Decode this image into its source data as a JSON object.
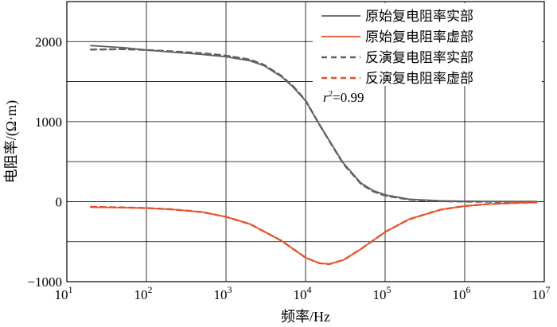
{
  "chart_data": {
    "type": "line",
    "x_scale": "log",
    "xlabel": "频率/Hz",
    "ylabel": "电阻率/(Ω·m)",
    "xlim": [
      10,
      10000000
    ],
    "ylim": [
      -1000,
      2500
    ],
    "grid": true,
    "legend_position": "top-right",
    "x_ticks": [
      {
        "value": 10,
        "base": "10",
        "exp": "1"
      },
      {
        "value": 100,
        "base": "10",
        "exp": "2"
      },
      {
        "value": 1000,
        "base": "10",
        "exp": "3"
      },
      {
        "value": 10000,
        "base": "10",
        "exp": "4"
      },
      {
        "value": 100000,
        "base": "10",
        "exp": "5"
      },
      {
        "value": 1000000,
        "base": "10",
        "exp": "6"
      },
      {
        "value": 10000000,
        "base": "10",
        "exp": "7"
      }
    ],
    "y_ticks": [
      {
        "value": 2000,
        "label": "2000"
      },
      {
        "value": 1000,
        "label": "1000"
      },
      {
        "value": 0,
        "label": "0"
      },
      {
        "value": -1000,
        "label": "−1000"
      }
    ],
    "y_gridlines": [
      -500,
      500,
      1500
    ],
    "annotation": {
      "r": "r",
      "sup": "2",
      "rest": "=0.99"
    },
    "series": [
      {
        "name": "原始复电阻率实部",
        "color": "#606060",
        "dash": "solid",
        "x": [
          20,
          50,
          100,
          200,
          500,
          1000,
          2000,
          3000,
          5000,
          7000,
          10000,
          15000,
          20000,
          30000,
          50000,
          70000,
          100000,
          200000,
          500000,
          1000000,
          2000000,
          5000000,
          8000000
        ],
        "y": [
          1950,
          1925,
          1895,
          1870,
          1840,
          1810,
          1760,
          1700,
          1560,
          1430,
          1260,
          960,
          760,
          480,
          230,
          140,
          85,
          30,
          10,
          5,
          3,
          2,
          2
        ]
      },
      {
        "name": "原始复电阻率虚部",
        "color": "#e8502a",
        "dash": "solid",
        "x": [
          20,
          50,
          100,
          200,
          500,
          1000,
          2000,
          5000,
          10000,
          15000,
          20000,
          30000,
          50000,
          100000,
          200000,
          500000,
          1000000,
          2000000,
          5000000,
          8000000
        ],
        "y": [
          -70,
          -75,
          -80,
          -95,
          -130,
          -190,
          -280,
          -490,
          -700,
          -770,
          -780,
          -730,
          -590,
          -380,
          -220,
          -100,
          -55,
          -30,
          -15,
          -10
        ]
      },
      {
        "name": "反演复电阻率实部",
        "color": "#606060",
        "dash": "dashed",
        "x": [
          20,
          50,
          100,
          200,
          500,
          1000,
          2000,
          3000,
          5000,
          7000,
          10000,
          15000,
          20000,
          30000,
          50000,
          70000,
          100000,
          200000,
          500000,
          1000000,
          2000000,
          5000000,
          8000000
        ],
        "y": [
          1900,
          1905,
          1895,
          1880,
          1855,
          1825,
          1775,
          1710,
          1570,
          1440,
          1265,
          960,
          755,
          470,
          220,
          130,
          75,
          25,
          5,
          0,
          -2,
          -3,
          -3
        ]
      },
      {
        "name": "反演复电阻率虚部",
        "color": "#e8502a",
        "dash": "dashed",
        "x": [
          20,
          50,
          100,
          200,
          500,
          1000,
          2000,
          5000,
          10000,
          15000,
          20000,
          30000,
          50000,
          100000,
          200000,
          500000,
          1000000,
          2000000,
          5000000,
          8000000
        ],
        "y": [
          -65,
          -72,
          -80,
          -95,
          -130,
          -190,
          -280,
          -490,
          -700,
          -770,
          -780,
          -730,
          -590,
          -380,
          -220,
          -100,
          -55,
          -30,
          -15,
          -10
        ]
      }
    ]
  }
}
